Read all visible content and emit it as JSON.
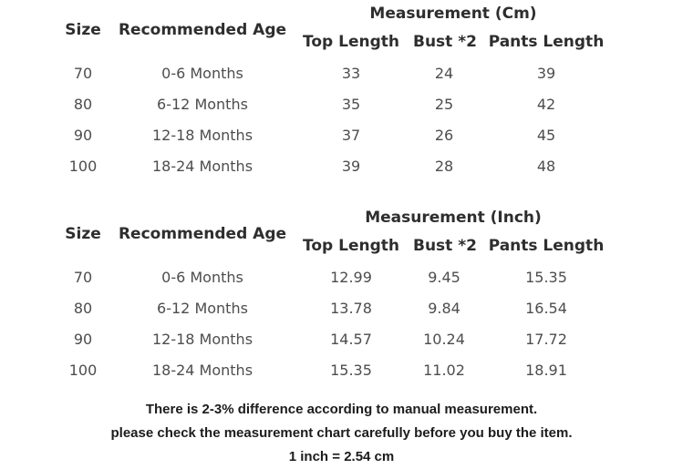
{
  "colors": {
    "background": "#ffffff",
    "header_text": "#2e2e2e",
    "body_text": "#4d4d4d",
    "footer_text": "#1c1c1c"
  },
  "chart_data": [
    {
      "type": "table",
      "title": "Measurement (Cm)",
      "columns": [
        "Size",
        "Recommended Age",
        "Top Length",
        "Bust *2",
        "Pants Length"
      ],
      "rows": [
        [
          "70",
          "0-6 Months",
          "33",
          "24",
          "39"
        ],
        [
          "80",
          "6-12 Months",
          "35",
          "25",
          "42"
        ],
        [
          "90",
          "12-18 Months",
          "37",
          "26",
          "45"
        ],
        [
          "100",
          "18-24 Months",
          "39",
          "28",
          "48"
        ]
      ]
    },
    {
      "type": "table",
      "title": "Measurement (Inch)",
      "columns": [
        "Size",
        "Recommended Age",
        "Top Length",
        "Bust *2",
        "Pants Length"
      ],
      "rows": [
        [
          "70",
          "0-6 Months",
          "12.99",
          "9.45",
          "15.35"
        ],
        [
          "80",
          "6-12 Months",
          "13.78",
          "9.84",
          "16.54"
        ],
        [
          "90",
          "12-18 Months",
          "14.57",
          "10.24",
          "17.72"
        ],
        [
          "100",
          "18-24 Months",
          "15.35",
          "11.02",
          "18.91"
        ]
      ]
    }
  ],
  "footer": {
    "lines": [
      "There is 2-3% difference according to manual measurement.",
      "please check the measurement chart carefully before you buy the item.",
      "1 inch = 2.54 cm"
    ]
  }
}
